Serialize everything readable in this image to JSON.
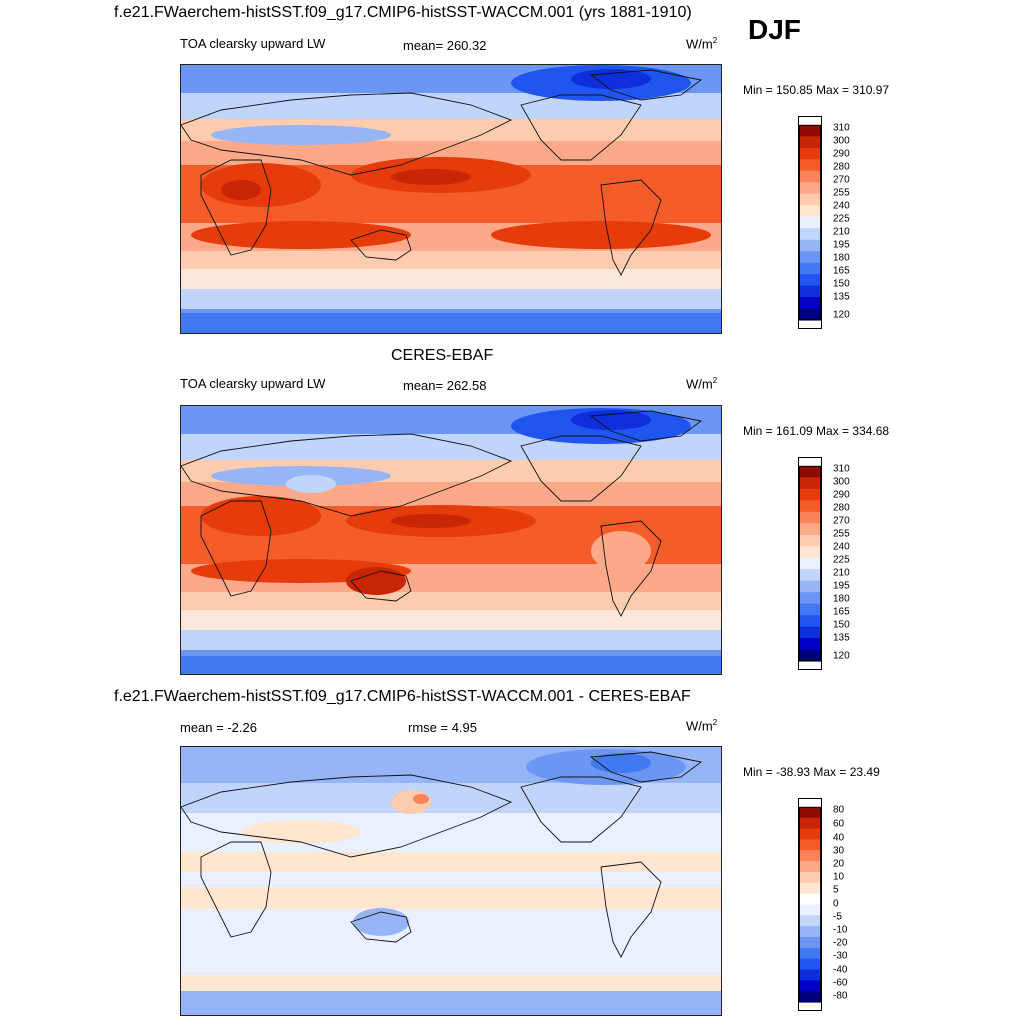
{
  "season": "DJF",
  "colors": {
    "abs_scale": [
      "#00007f",
      "#0000c8",
      "#0f2fdc",
      "#2055ef",
      "#4179f0",
      "#6b96f3",
      "#96b5f6",
      "#c1d4fa",
      "#e9f0ff",
      "#ffe6d0",
      "#fdccaf",
      "#fca98a",
      "#f98459",
      "#f45d2a",
      "#e63c0b",
      "#c82607",
      "#8f0a05"
    ],
    "diff_scale": [
      "#00007f",
      "#0000c8",
      "#0f2fdc",
      "#2055ef",
      "#4179f0",
      "#6b96f3",
      "#96b5f6",
      "#c1d4fa",
      "#e9f0ff",
      "#ffffff",
      "#ffe6d0",
      "#fdccaf",
      "#fca98a",
      "#f98459",
      "#f45d2a",
      "#e63c0b",
      "#c82607",
      "#8f0a05"
    ]
  },
  "panels": [
    {
      "id": "model",
      "title": "f.e21.FWaerchem-histSST.f09_g17.CMIP6-histSST-WACCM.001 (yrs 1881-1910)",
      "left_label": "TOA clearsky upward LW",
      "mid_label": "mean= 260.32",
      "units_base": "W/m",
      "units_exp": "2",
      "minmax": "Min = 150.85 Max = 310.97",
      "colorbar_labels": [
        "310",
        "300",
        "290",
        "280",
        "270",
        "255",
        "240",
        "225",
        "210",
        "195",
        "180",
        "165",
        "150",
        "135",
        "120"
      ]
    },
    {
      "id": "obs",
      "title": "CERES-EBAF",
      "left_label": "TOA clearsky upward LW",
      "mid_label": "mean= 262.58",
      "units_base": "W/m",
      "units_exp": "2",
      "minmax": "Min = 161.09 Max = 334.68",
      "colorbar_labels": [
        "310",
        "300",
        "290",
        "280",
        "270",
        "255",
        "240",
        "225",
        "210",
        "195",
        "180",
        "165",
        "150",
        "135",
        "120"
      ]
    },
    {
      "id": "diff",
      "title": "f.e21.FWaerchem-histSST.f09_g17.CMIP6-histSST-WACCM.001 - CERES-EBAF",
      "left_label": "mean =  -2.26",
      "mid_label": "rmse =   4.95",
      "units_base": "W/m",
      "units_exp": "2",
      "minmax": "Min = -38.93 Max =  23.49",
      "colorbar_labels": [
        "80",
        "60",
        "40",
        "30",
        "20",
        "10",
        "5",
        "0",
        "-5",
        "-10",
        "-20",
        "-30",
        "-40",
        "-60",
        "-80"
      ]
    }
  ]
}
